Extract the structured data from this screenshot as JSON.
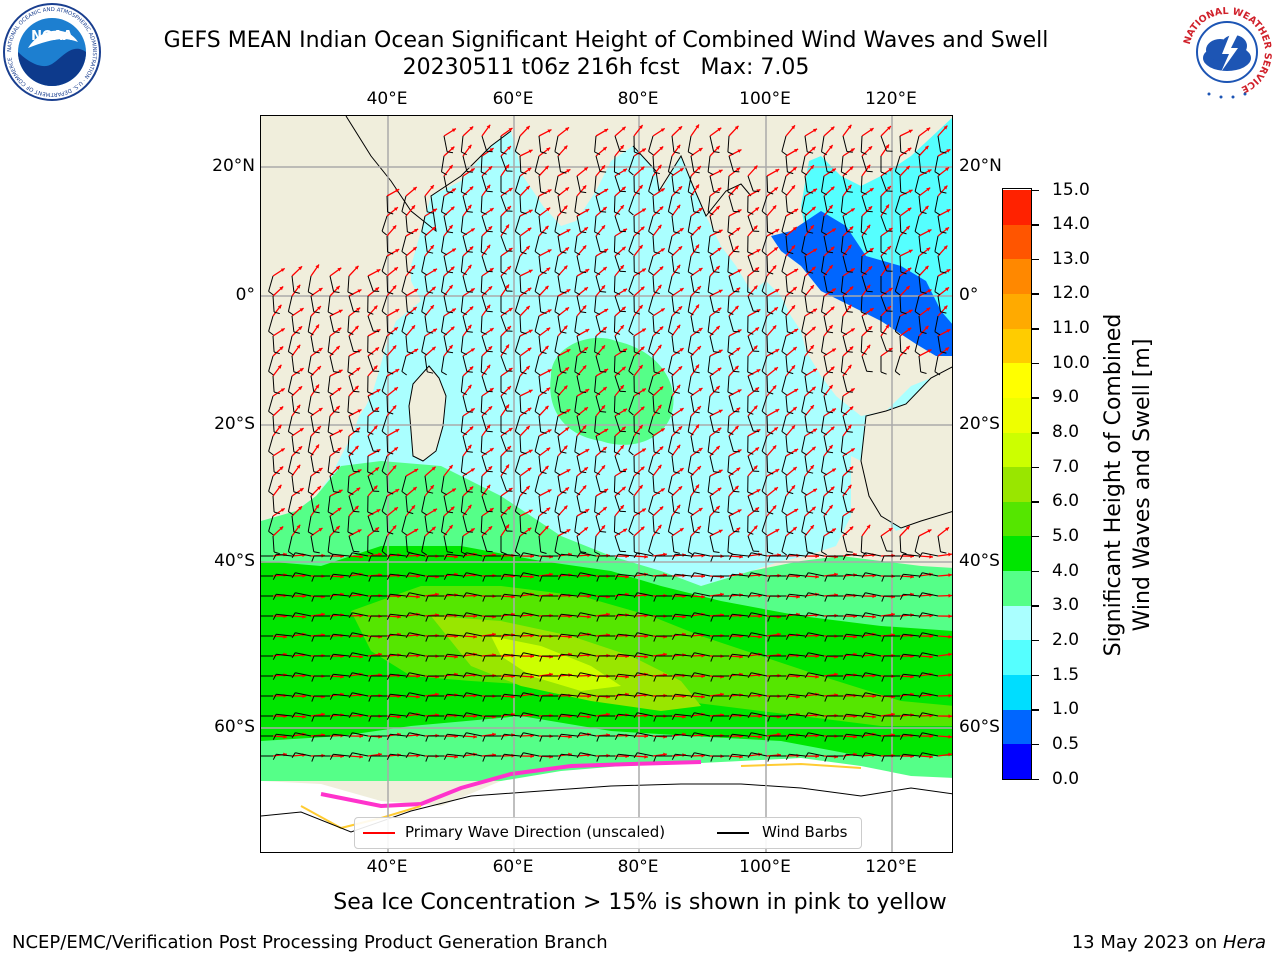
{
  "title": {
    "line1": "GEFS MEAN Indian Ocean Significant Height of Combined Wind Waves and Swell",
    "line2": "20230511 t06z 216h fcst   Max: 7.05"
  },
  "map": {
    "lon_ticks_top": [
      "40°E",
      "60°E",
      "80°E",
      "100°E",
      "120°E"
    ],
    "lon_ticks_bottom": [
      "40°E",
      "60°E",
      "80°E",
      "100°E",
      "120°E"
    ],
    "lat_ticks_left": [
      "20°N",
      "0°",
      "20°S",
      "40°S",
      "60°S"
    ],
    "lat_ticks_right": [
      "20°N",
      "0°",
      "20°S",
      "40°S",
      "60°S"
    ],
    "colors": {
      "land": "#f0eedc",
      "ice": "#ffffff",
      "wave_arrow": "#ff0000",
      "wind_barb": "#000000"
    }
  },
  "colorbar": {
    "title": "Significant Height of Combined\nWind Waves and Swell [m]",
    "labels": [
      "0.0",
      "0.5",
      "1.0",
      "1.5",
      "2.0",
      "3.0",
      "4.0",
      "5.0",
      "6.0",
      "7.0",
      "8.0",
      "9.0",
      "10.0",
      "11.0",
      "12.0",
      "13.0",
      "14.0",
      "15.0"
    ],
    "colors": [
      "#0000ff",
      "#0066ff",
      "#00ddff",
      "#55ffff",
      "#aaffff",
      "#55ff88",
      "#00e600",
      "#55e600",
      "#99e600",
      "#ccff00",
      "#eeff00",
      "#ffff00",
      "#ffcc00",
      "#ffaa00",
      "#ff8800",
      "#ff5500",
      "#ff2200"
    ]
  },
  "legend": {
    "wave_label": "Primary Wave Direction (unscaled)",
    "wind_label": "Wind Barbs"
  },
  "footnote": "Sea Ice Concentration > 15% is shown in pink to yellow",
  "credit_left": "NCEP/EMC/Verification Post Processing Product Generation Branch",
  "credit_right": {
    "date": "13 May 2023 on ",
    "host": "Hera"
  },
  "logos": {
    "noaa_text": "NOAA",
    "noaa_ring": "NATIONAL OCEANIC AND ATMOSPHERIC ADMINISTRATION · U.S. DEPARTMENT OF COMMERCE",
    "nws_ring": "NATIONAL WEATHER SERVICE"
  },
  "chart_data": {
    "type": "map",
    "max_value": 7.05,
    "colorbar_levels": [
      0.0,
      0.5,
      1.0,
      1.5,
      2.0,
      3.0,
      4.0,
      5.0,
      6.0,
      7.0,
      8.0,
      9.0,
      10.0,
      11.0,
      12.0,
      13.0,
      14.0,
      15.0
    ],
    "lon_range": [
      20,
      130
    ],
    "lat_range": [
      -75,
      28
    ]
  }
}
